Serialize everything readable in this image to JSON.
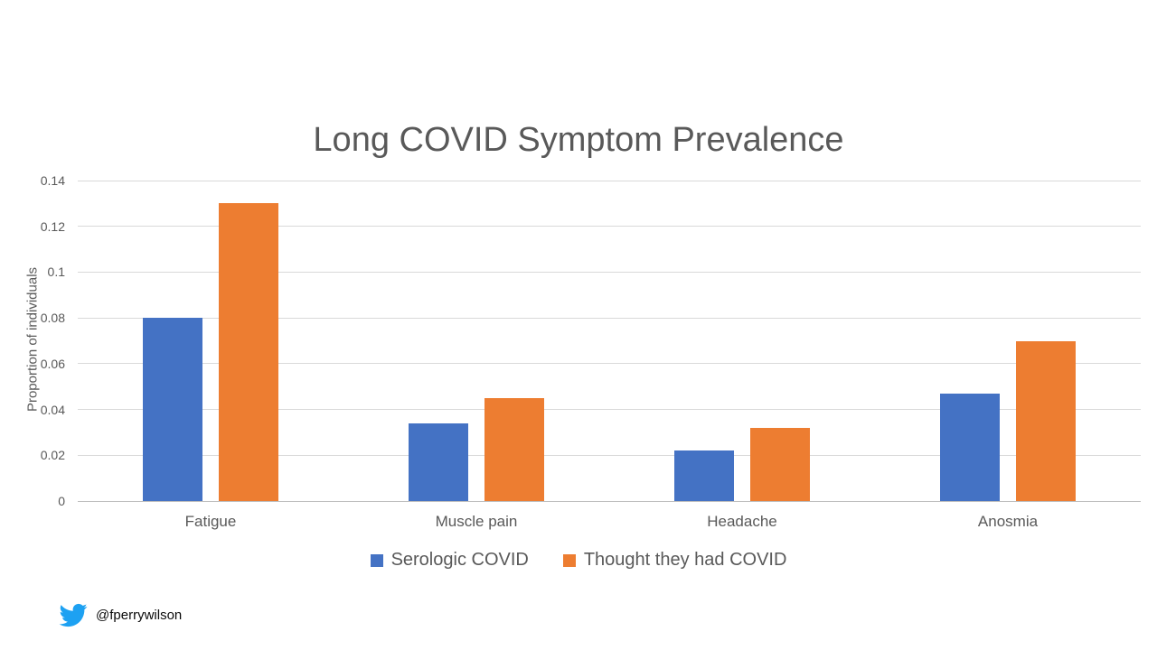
{
  "chart_data": {
    "type": "bar",
    "title": "Long COVID Symptom Prevalence",
    "categories": [
      "Fatigue",
      "Muscle pain",
      "Headache",
      "Anosmia"
    ],
    "series": [
      {
        "name": "Serologic COVID",
        "color": "#4472C4",
        "values": [
          0.08,
          0.034,
          0.022,
          0.047
        ]
      },
      {
        "name": "Thought they had COVID",
        "color": "#ED7D31",
        "values": [
          0.13,
          0.045,
          0.032,
          0.07
        ]
      }
    ],
    "xlabel": "",
    "ylabel": "Proportion of individuals",
    "ylim": [
      0,
      0.14
    ],
    "ytick_step": 0.02,
    "ytick_labels": [
      "0",
      "0.02",
      "0.04",
      "0.06",
      "0.08",
      "0.1",
      "0.12",
      "0.14"
    ],
    "grid": true,
    "gridline_color": "#D9D9D9",
    "legend_position": "bottom"
  },
  "footer": {
    "twitter_icon": "twitter-bird-icon",
    "twitter_icon_color": "#1DA1F2",
    "twitter_handle": "@fperrywilson"
  }
}
